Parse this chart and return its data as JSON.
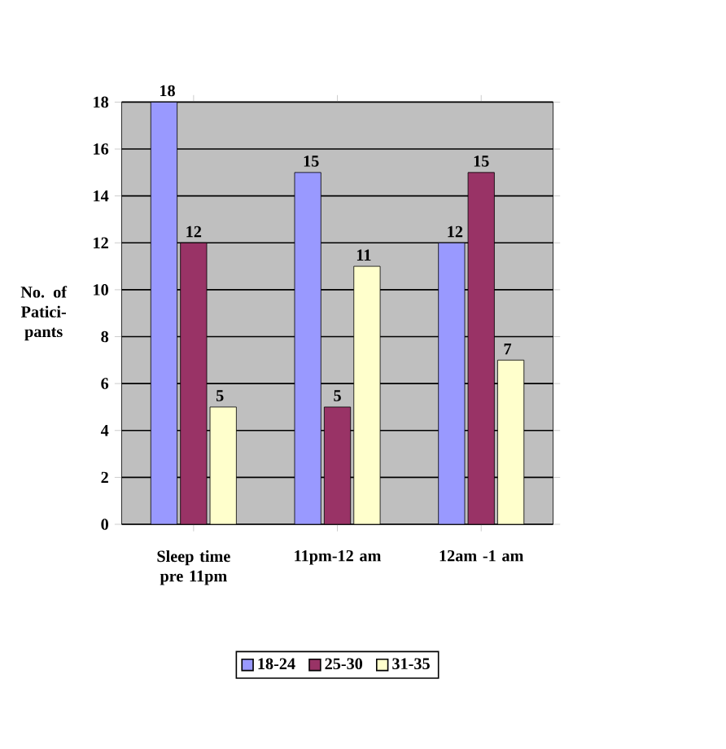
{
  "chart_data": {
    "type": "bar",
    "ylabel": "No. of Patici-pants",
    "categories": [
      "Sleep time pre 11pm",
      "11pm-12 am",
      "12am -1 am"
    ],
    "series": [
      {
        "name": "18-24",
        "color": "#9999ff",
        "values": [
          18,
          15,
          12
        ]
      },
      {
        "name": "25-30",
        "color": "#993366",
        "values": [
          12,
          5,
          15
        ]
      },
      {
        "name": "31-35",
        "color": "#ffffcc",
        "values": [
          5,
          11,
          7
        ]
      }
    ],
    "ylim": [
      0,
      18
    ],
    "yticks": [
      0,
      2,
      4,
      6,
      8,
      10,
      12,
      14,
      16,
      18
    ],
    "grid": "y",
    "legend": "bottom",
    "data_labels": true
  }
}
